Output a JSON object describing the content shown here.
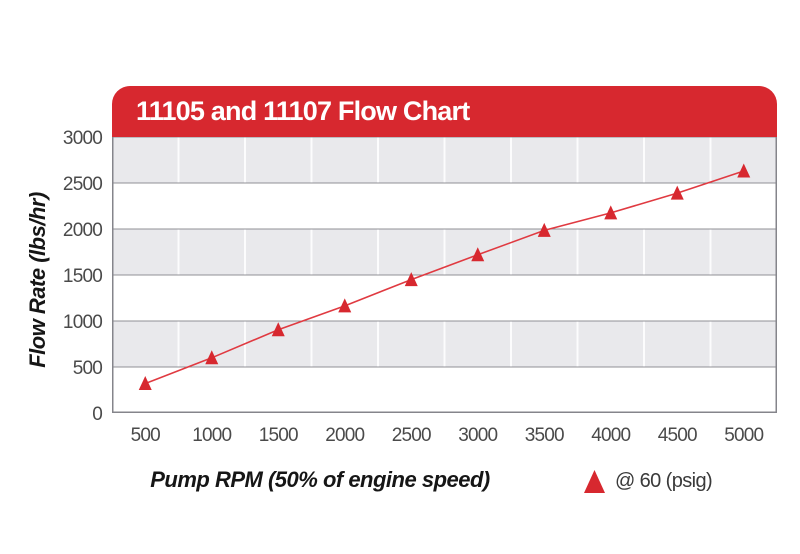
{
  "header": {
    "title": "11105 and 11107 Flow Chart"
  },
  "chart_data": {
    "type": "line",
    "title": "11105 and 11107 Flow Chart",
    "xlabel": "Pump RPM (50% of engine speed)",
    "ylabel": "Flow Rate (lbs/hr)",
    "categories": [
      500,
      1000,
      1500,
      2000,
      2500,
      3000,
      3500,
      4000,
      4500,
      5000
    ],
    "series": [
      {
        "name": "@ 60 (psig)",
        "marker": "triangle",
        "color": "#D7282F",
        "values": [
          320,
          600,
          905,
          1165,
          1450,
          1720,
          1985,
          2175,
          2390,
          2630
        ]
      }
    ],
    "ylim": [
      0,
      3000
    ],
    "yticks": [
      0,
      500,
      1000,
      1500,
      2000,
      2500,
      3000
    ],
    "grid": "horizontal gridlines every 500 with alternating gray/white bands; white vertical lines at category boundaries",
    "legend_position": "bottom-right"
  },
  "colors": {
    "accent_red": "#D7282F",
    "line_red": "#E03A41",
    "band_gray": "#E9E9EC",
    "grid_line": "#909096",
    "plot_border": "#85858B",
    "tick_label": "#4A4A4A"
  },
  "icons": {
    "legend_marker": "triangle-up"
  }
}
